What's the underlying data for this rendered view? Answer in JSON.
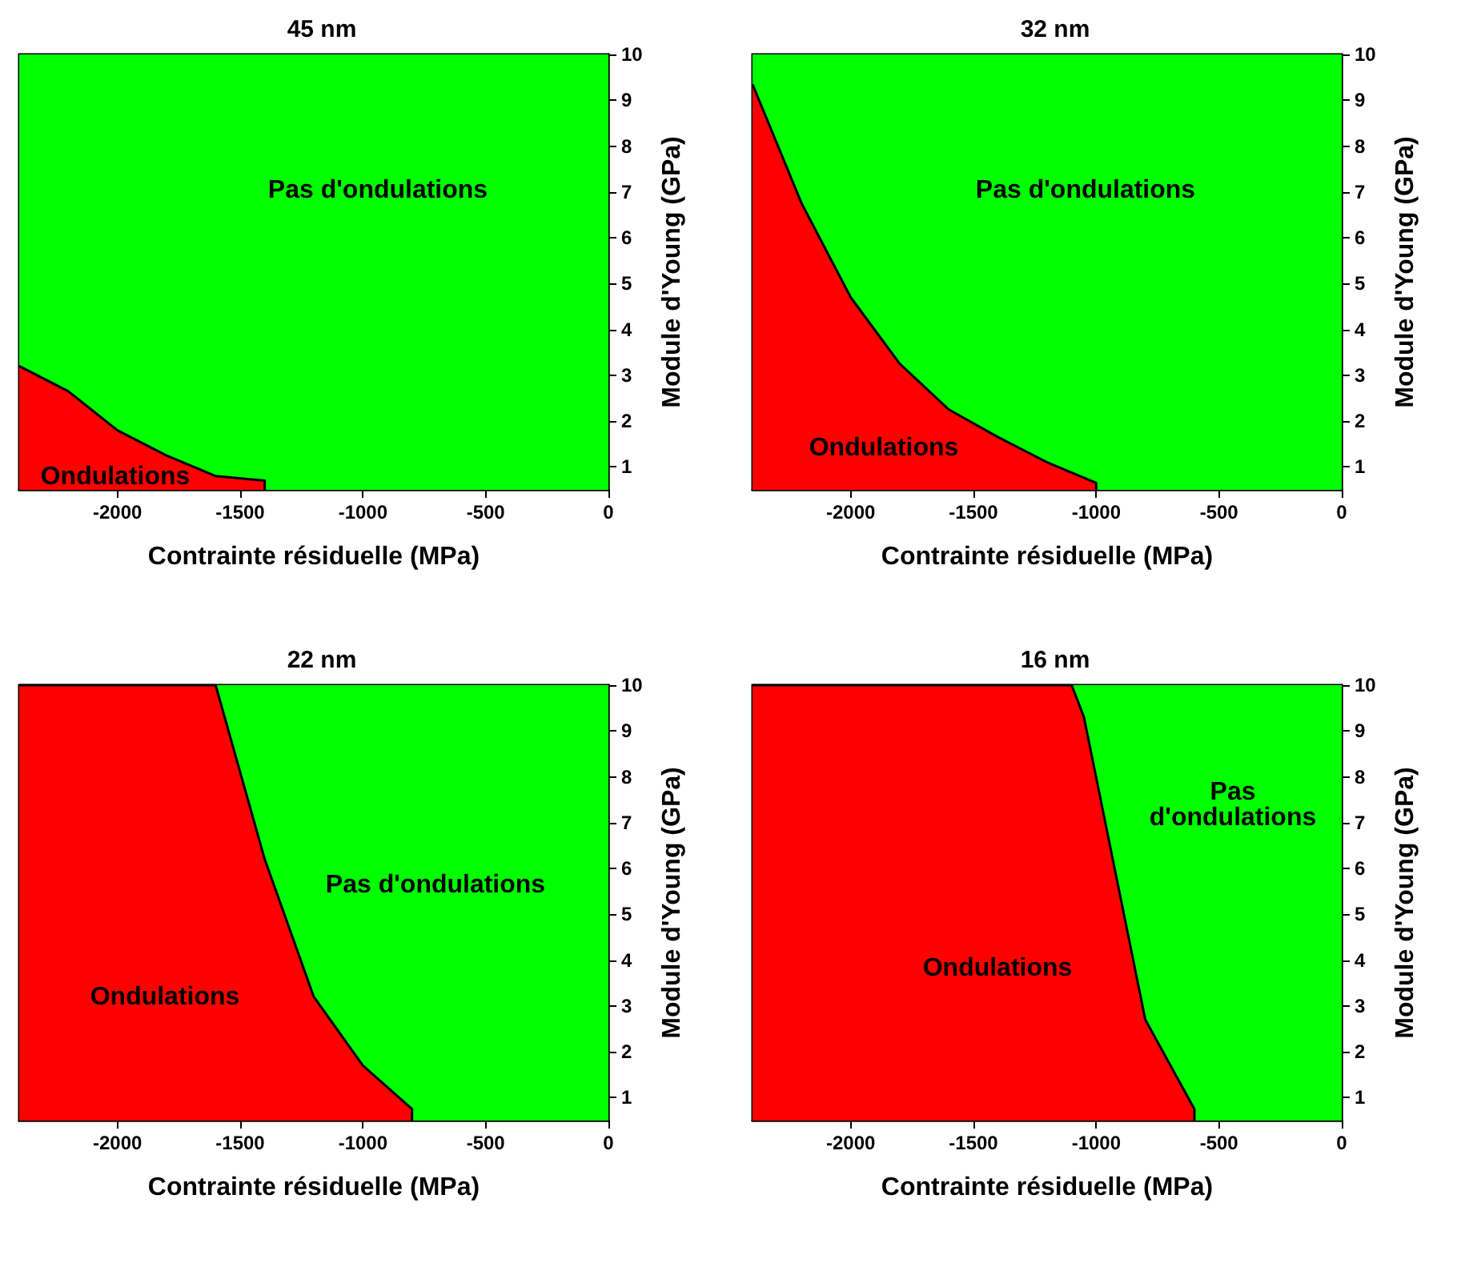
{
  "chart_data": [
    {
      "type": "area",
      "title": "45 nm",
      "xlabel": "Contrainte résiduelle (MPa)",
      "ylabel": "Module d'Young (GPa)",
      "xlim": [
        -2400,
        0
      ],
      "ylim": [
        0.5,
        10
      ],
      "xticks": [
        -2000,
        -1500,
        -1000,
        -500,
        0
      ],
      "yticks": [
        1,
        2,
        3,
        4,
        5,
        6,
        7,
        8,
        9,
        10
      ],
      "bands": [
        {
          "axis": "y",
          "from": 0.5,
          "to": 10,
          "color": "#00ff00"
        }
      ],
      "series": [
        {
          "color": "#ff0000",
          "x": [
            -2400,
            -2200,
            -2000,
            -1800,
            -1600,
            -1400,
            -1400
          ],
          "values": [
            3.2,
            2.65,
            1.8,
            1.25,
            0.8,
            0.7,
            0.5
          ]
        }
      ],
      "annotations": [
        "Pas d'ondulations",
        "Ondulations"
      ]
    },
    {
      "type": "area",
      "title": "32 nm",
      "xlabel": "Contrainte résiduelle (MPa)",
      "ylabel": "Module d'Young (GPa)",
      "xlim": [
        -2400,
        0
      ],
      "ylim": [
        0.5,
        10
      ],
      "xticks": [
        -2000,
        -1500,
        -1000,
        -500,
        0
      ],
      "yticks": [
        1,
        2,
        3,
        4,
        5,
        6,
        7,
        8,
        9,
        10
      ],
      "bands": [
        {
          "axis": "y",
          "from": 0.5,
          "to": 10,
          "color": "#00ff00"
        }
      ],
      "series": [
        {
          "color": "#ff0000",
          "x": [
            -2400,
            -2200,
            -2000,
            -1800,
            -1600,
            -1400,
            -1200,
            -1000,
            -1000
          ],
          "values": [
            9.35,
            6.75,
            4.7,
            3.25,
            2.25,
            1.65,
            1.1,
            0.65,
            0.5
          ]
        }
      ],
      "annotations": [
        "Pas d'ondulations",
        "Ondulations"
      ]
    },
    {
      "type": "area",
      "title": "22 nm",
      "xlabel": "Contrainte résiduelle (MPa)",
      "ylabel": "Module d'Young (GPa)",
      "xlim": [
        -2400,
        0
      ],
      "ylim": [
        0.5,
        10
      ],
      "xticks": [
        -2000,
        -1500,
        -1000,
        -500,
        0
      ],
      "yticks": [
        1,
        2,
        3,
        4,
        5,
        6,
        7,
        8,
        9,
        10
      ],
      "bands": [
        {
          "axis": "y",
          "from": 0.5,
          "to": 10,
          "color": "#00ff00"
        }
      ],
      "series": [
        {
          "color": "#ff0000",
          "x": [
            -2400,
            -1600,
            -1400,
            -1200,
            -1000,
            -800,
            -800
          ],
          "values": [
            10,
            10,
            6.2,
            3.2,
            1.7,
            0.75,
            0.5
          ]
        }
      ],
      "annotations": [
        "Pas d'ondulations",
        "Ondulations"
      ]
    },
    {
      "type": "area",
      "title": "16 nm",
      "xlabel": "Contrainte résiduelle (MPa)",
      "ylabel": "Module d'Young (GPa)",
      "xlim": [
        -2400,
        0
      ],
      "ylim": [
        0.5,
        10
      ],
      "xticks": [
        -2000,
        -1500,
        -1000,
        -500,
        0
      ],
      "yticks": [
        1,
        2,
        3,
        4,
        5,
        6,
        7,
        8,
        9,
        10
      ],
      "bands": [
        {
          "axis": "y",
          "from": 0.5,
          "to": 10,
          "color": "#00ff00"
        }
      ],
      "series": [
        {
          "color": "#ff0000",
          "x": [
            -2400,
            -1100,
            -1050,
            -800,
            -600,
            -600
          ],
          "values": [
            10,
            10,
            9.3,
            2.7,
            0.75,
            0.5
          ]
        }
      ],
      "annotations": [
        "Pas\nd'ondulations",
        "Ondulations"
      ]
    }
  ]
}
